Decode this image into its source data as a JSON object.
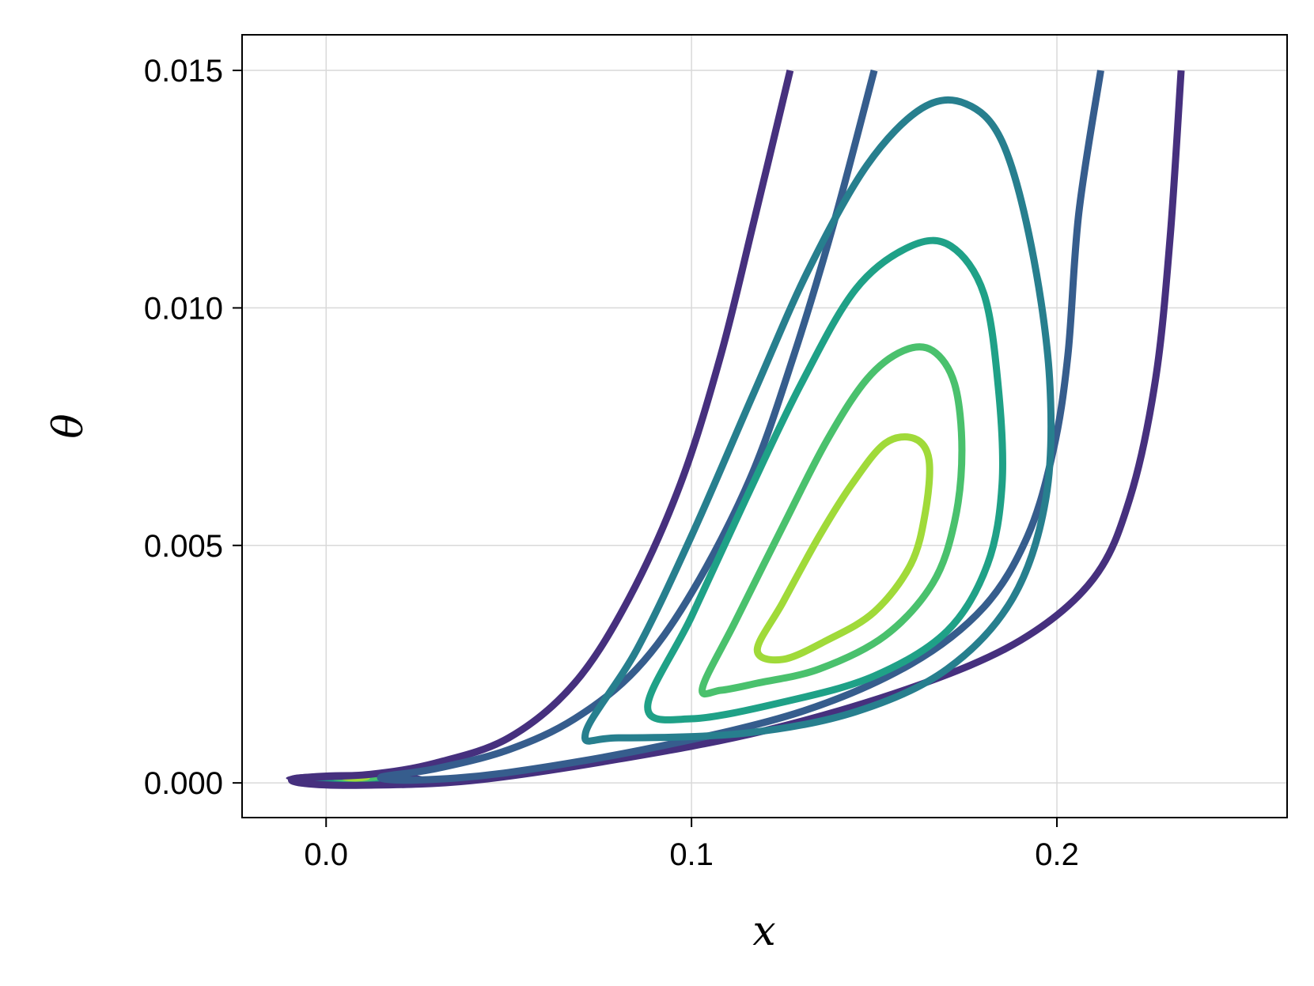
{
  "chart_data": {
    "type": "contour",
    "title": "",
    "xlabel": "x",
    "ylabel": "θ",
    "xlim": [
      -0.023,
      0.263
    ],
    "ylim": [
      -0.00073,
      0.01575
    ],
    "xticks": [
      0.0,
      0.1,
      0.2
    ],
    "xtick_labels": [
      "0.0",
      "0.1",
      "0.2"
    ],
    "yticks": [
      0.0,
      0.005,
      0.01,
      0.015
    ],
    "ytick_labels": [
      "0.000",
      "0.005",
      "0.010",
      "0.015"
    ],
    "grid": true,
    "legend": "none",
    "colormap": "viridis",
    "series": [
      {
        "color": "#46307e",
        "open": true,
        "points": [
          [
            0.127,
            0.015
          ],
          [
            0.117,
            0.0118
          ],
          [
            0.108,
            0.009
          ],
          [
            0.097,
            0.0063
          ],
          [
            0.083,
            0.0039
          ],
          [
            0.068,
            0.0021
          ],
          [
            0.05,
            0.00095
          ],
          [
            0.03,
            0.00042
          ],
          [
            0.012,
            0.00018
          ],
          [
            -0.008,
            0.0001
          ],
          [
            -0.006,
            -1e-05
          ],
          [
            0.01,
            -5e-05
          ],
          [
            0.04,
            5e-05
          ],
          [
            0.08,
            0.0005
          ],
          [
            0.12,
            0.0011
          ],
          [
            0.16,
            0.002
          ],
          [
            0.19,
            0.003
          ],
          [
            0.21,
            0.0043
          ],
          [
            0.22,
            0.006
          ],
          [
            0.227,
            0.0085
          ],
          [
            0.231,
            0.0115
          ],
          [
            0.234,
            0.015
          ]
        ]
      },
      {
        "color": "#365d8d",
        "open": true,
        "points": [
          [
            0.15,
            0.015
          ],
          [
            0.139,
            0.0118
          ],
          [
            0.128,
            0.009
          ],
          [
            0.116,
            0.0064
          ],
          [
            0.1,
            0.004
          ],
          [
            0.085,
            0.0024
          ],
          [
            0.068,
            0.00135
          ],
          [
            0.05,
            0.0007
          ],
          [
            0.03,
            0.0003
          ],
          [
            0.015,
            0.00012
          ],
          [
            0.025,
            6e-05
          ],
          [
            0.05,
            0.00022
          ],
          [
            0.09,
            0.00075
          ],
          [
            0.13,
            0.0015
          ],
          [
            0.16,
            0.0025
          ],
          [
            0.18,
            0.0037
          ],
          [
            0.192,
            0.0052
          ],
          [
            0.199,
            0.007
          ],
          [
            0.203,
            0.009
          ],
          [
            0.206,
            0.012
          ],
          [
            0.212,
            0.015
          ]
        ]
      },
      {
        "color": "#277f8e",
        "open": false,
        "points": [
          [
            0.071,
            0.00105
          ],
          [
            0.085,
            0.0028
          ],
          [
            0.1,
            0.0052
          ],
          [
            0.117,
            0.0082
          ],
          [
            0.132,
            0.0108
          ],
          [
            0.148,
            0.013
          ],
          [
            0.163,
            0.0142
          ],
          [
            0.175,
            0.0143
          ],
          [
            0.185,
            0.0135
          ],
          [
            0.193,
            0.0113
          ],
          [
            0.198,
            0.0085
          ],
          [
            0.197,
            0.006
          ],
          [
            0.188,
            0.0039
          ],
          [
            0.17,
            0.0024
          ],
          [
            0.145,
            0.0015
          ],
          [
            0.115,
            0.00105
          ],
          [
            0.08,
            0.00095
          ]
        ]
      },
      {
        "color": "#1fa187",
        "open": false,
        "points": [
          [
            0.088,
            0.0016
          ],
          [
            0.1,
            0.0035
          ],
          [
            0.115,
            0.006
          ],
          [
            0.13,
            0.0084
          ],
          [
            0.145,
            0.0104
          ],
          [
            0.16,
            0.0113
          ],
          [
            0.171,
            0.0113
          ],
          [
            0.18,
            0.0103
          ],
          [
            0.184,
            0.0083
          ],
          [
            0.185,
            0.0063
          ],
          [
            0.181,
            0.0046
          ],
          [
            0.17,
            0.0032
          ],
          [
            0.15,
            0.00225
          ],
          [
            0.125,
            0.0017
          ],
          [
            0.1,
            0.00135
          ]
        ]
      },
      {
        "color": "#4ac16d",
        "open": false,
        "points": [
          [
            0.103,
            0.002
          ],
          [
            0.112,
            0.0034
          ],
          [
            0.125,
            0.0054
          ],
          [
            0.137,
            0.0072
          ],
          [
            0.148,
            0.0085
          ],
          [
            0.158,
            0.0091
          ],
          [
            0.166,
            0.0091
          ],
          [
            0.172,
            0.0084
          ],
          [
            0.174,
            0.007
          ],
          [
            0.172,
            0.0055
          ],
          [
            0.166,
            0.0042
          ],
          [
            0.153,
            0.0031
          ],
          [
            0.135,
            0.0024
          ],
          [
            0.118,
            0.0021
          ],
          [
            0.108,
            0.00195
          ]
        ]
      },
      {
        "color": "#a0da39",
        "open": false,
        "points": [
          [
            0.118,
            0.0028
          ],
          [
            0.125,
            0.0038
          ],
          [
            0.135,
            0.0052
          ],
          [
            0.144,
            0.0063
          ],
          [
            0.153,
            0.00715
          ],
          [
            0.161,
            0.00725
          ],
          [
            0.165,
            0.0068
          ],
          [
            0.164,
            0.0057
          ],
          [
            0.16,
            0.0046
          ],
          [
            0.15,
            0.0036
          ],
          [
            0.137,
            0.003
          ],
          [
            0.125,
            0.0026
          ]
        ]
      }
    ],
    "spot": {
      "center": [
        0.008,
        0.0001
      ],
      "layers": [
        {
          "color": "#46307e",
          "rx": 0.019,
          "ry": 0.00013
        },
        {
          "color": "#365d8d",
          "rx": 0.016,
          "ry": 0.00011
        },
        {
          "color": "#277f8e",
          "rx": 0.013,
          "ry": 0.0001
        },
        {
          "color": "#1fa187",
          "rx": 0.01,
          "ry": 9e-05
        },
        {
          "color": "#4ac16d",
          "rx": 0.007,
          "ry": 8e-05
        },
        {
          "color": "#a0da39",
          "rx": 0.004,
          "ry": 7e-05
        }
      ]
    }
  }
}
